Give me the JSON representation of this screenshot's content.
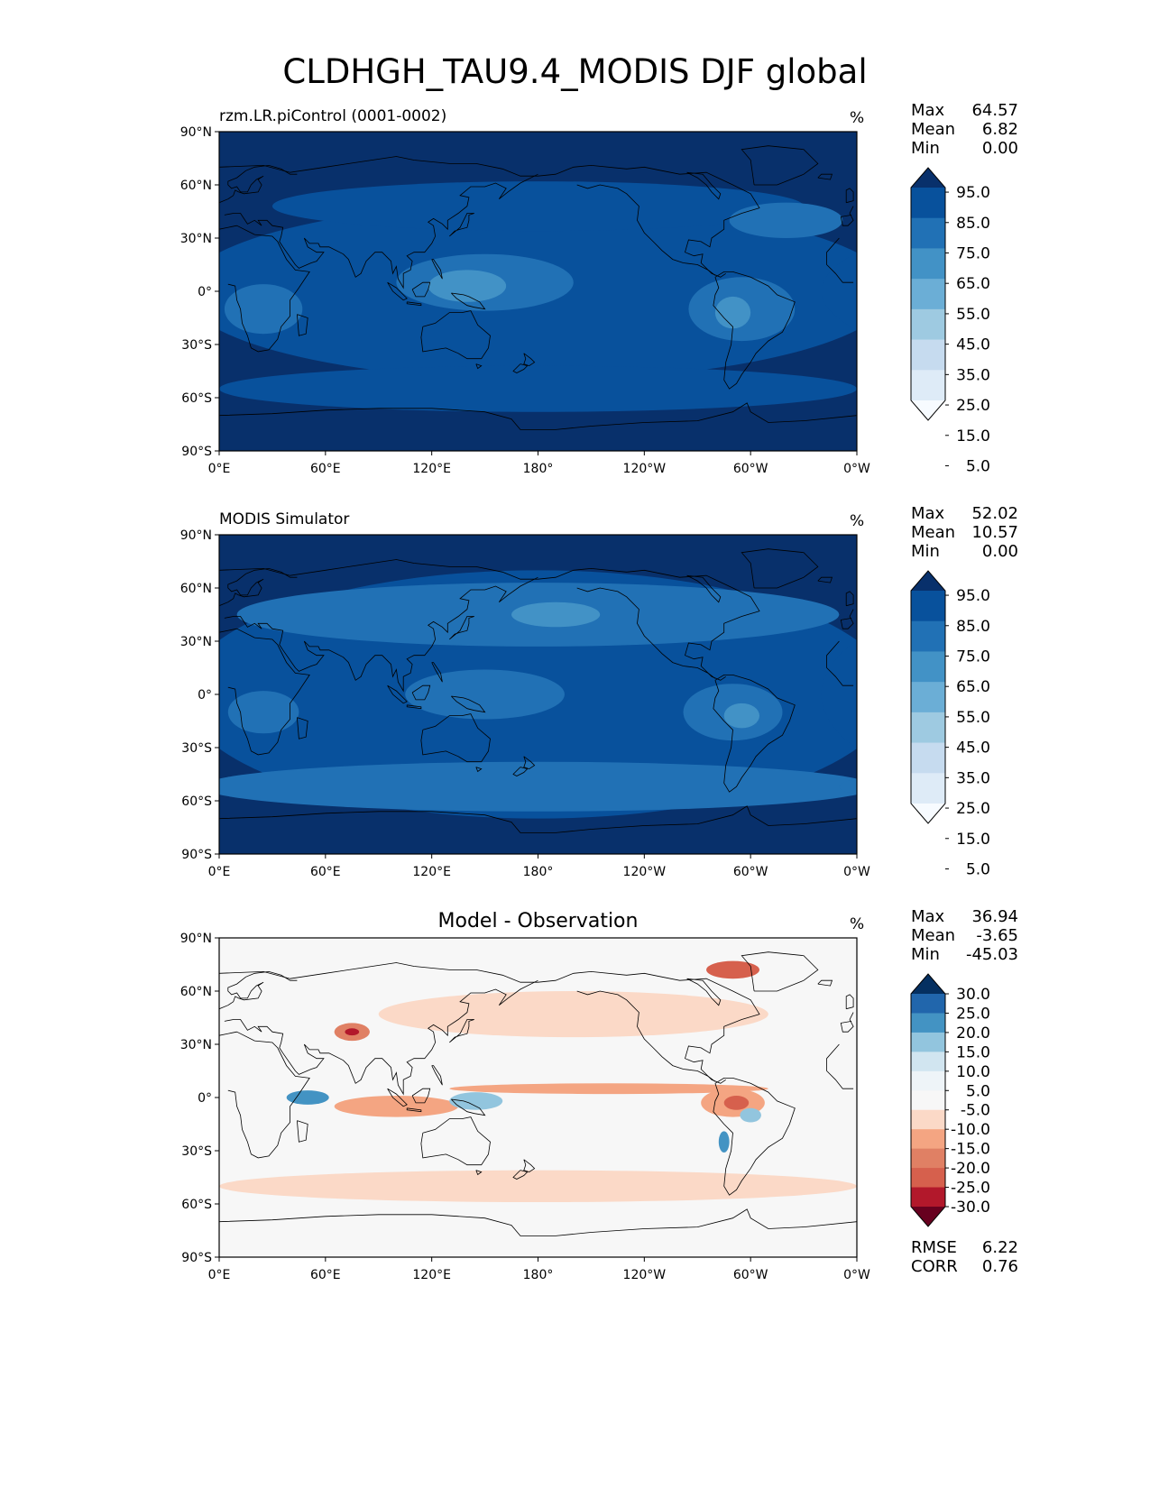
{
  "figure": {
    "title": "CLDHGH_TAU9.4_MODIS DJF global"
  },
  "axes": {
    "lat_ticks": [
      "90°N",
      "60°N",
      "30°N",
      "0°",
      "30°S",
      "60°S",
      "90°S"
    ],
    "lon_ticks": [
      "0°E",
      "60°E",
      "120°E",
      "180°",
      "120°W",
      "60°W",
      "0°W"
    ]
  },
  "chart_data": [
    {
      "type": "heatmap",
      "title": "rzm.LR.piControl (0001-0002)",
      "units": "%",
      "xlim": [
        0,
        360
      ],
      "ylim": [
        -90,
        90
      ],
      "stats": [
        {
          "label": "Max",
          "value": "64.57"
        },
        {
          "label": "Mean",
          "value": "6.82"
        },
        {
          "label": "Min",
          "value": "0.00"
        }
      ],
      "colorbar": {
        "levels": [
          "95.0",
          "85.0",
          "75.0",
          "65.0",
          "55.0",
          "45.0",
          "35.0",
          "25.0",
          "15.0",
          "5.0"
        ],
        "colors": [
          "#08306b",
          "#08519c",
          "#2171b5",
          "#4292c6",
          "#6baed6",
          "#9ecae1",
          "#c6dbef",
          "#deebf7",
          "#f7fbff"
        ]
      },
      "ellipses": [
        {
          "lon": 180,
          "lat": 0,
          "rlon": 200,
          "rlat": 50,
          "level": 1
        },
        {
          "lon": 150,
          "lat": 5,
          "rlon": 50,
          "rlat": 16,
          "level": 2
        },
        {
          "lon": 140,
          "lat": 3,
          "rlon": 22,
          "rlat": 9,
          "level": 3
        },
        {
          "lon": 295,
          "lat": -10,
          "rlon": 30,
          "rlat": 18,
          "level": 2
        },
        {
          "lon": 290,
          "lat": -12,
          "rlon": 10,
          "rlat": 9,
          "level": 3
        },
        {
          "lon": 25,
          "lat": -10,
          "rlon": 22,
          "rlat": 14,
          "level": 2
        },
        {
          "lon": 180,
          "lat": 48,
          "rlon": 150,
          "rlat": 14,
          "level": 1
        },
        {
          "lon": 180,
          "lat": -55,
          "rlon": 180,
          "rlat": 13,
          "level": 1
        },
        {
          "lon": 320,
          "lat": 40,
          "rlon": 32,
          "rlat": 10,
          "level": 2
        }
      ]
    },
    {
      "type": "heatmap",
      "title": "MODIS Simulator",
      "units": "%",
      "xlim": [
        0,
        360
      ],
      "ylim": [
        -90,
        90
      ],
      "stats": [
        {
          "label": "Max",
          "value": "52.02"
        },
        {
          "label": "Mean",
          "value": "10.57"
        },
        {
          "label": "Min",
          "value": "0.00"
        }
      ],
      "colorbar": {
        "levels": [
          "95.0",
          "85.0",
          "75.0",
          "65.0",
          "55.0",
          "45.0",
          "35.0",
          "25.0",
          "15.0",
          "5.0"
        ],
        "colors": [
          "#08306b",
          "#08519c",
          "#2171b5",
          "#4292c6",
          "#6baed6",
          "#9ecae1",
          "#c6dbef",
          "#deebf7",
          "#f7fbff"
        ]
      },
      "ellipses": [
        {
          "lon": 180,
          "lat": 0,
          "rlon": 200,
          "rlat": 70,
          "level": 1
        },
        {
          "lon": 180,
          "lat": 45,
          "rlon": 170,
          "rlat": 18,
          "level": 2
        },
        {
          "lon": 180,
          "lat": -52,
          "rlon": 190,
          "rlat": 14,
          "level": 2
        },
        {
          "lon": 150,
          "lat": 0,
          "rlon": 45,
          "rlat": 14,
          "level": 2
        },
        {
          "lon": 290,
          "lat": -10,
          "rlon": 28,
          "rlat": 16,
          "level": 2
        },
        {
          "lon": 295,
          "lat": -12,
          "rlon": 10,
          "rlat": 7,
          "level": 3
        },
        {
          "lon": 25,
          "lat": -10,
          "rlon": 20,
          "rlat": 12,
          "level": 2
        },
        {
          "lon": 190,
          "lat": 45,
          "rlon": 25,
          "rlat": 7,
          "level": 3
        }
      ]
    },
    {
      "type": "heatmap",
      "title": "Model - Observation",
      "units": "%",
      "xlim": [
        0,
        360
      ],
      "ylim": [
        -90,
        90
      ],
      "stats": [
        {
          "label": "Max",
          "value": "36.94"
        },
        {
          "label": "Mean",
          "value": "-3.65"
        },
        {
          "label": "Min",
          "value": "-45.03"
        }
      ],
      "metrics": [
        {
          "label": "RMSE",
          "value": "6.22"
        },
        {
          "label": "CORR",
          "value": "0.76"
        }
      ],
      "colorbar": {
        "levels": [
          "30.0",
          "25.0",
          "20.0",
          "15.0",
          "10.0",
          "5.0",
          "-5.0",
          "-10.0",
          "-15.0",
          "-20.0",
          "-25.0",
          "-30.0"
        ],
        "colors": [
          "#053061",
          "#2166ac",
          "#4393c3",
          "#92c5de",
          "#d1e5f0",
          "#eef4f8",
          "#f7f7f7",
          "#fbd9c7",
          "#f4a582",
          "#e08064",
          "#d6604d",
          "#b2182b",
          "#67001f"
        ]
      },
      "background_level": 6,
      "ellipses": [
        {
          "lon": 200,
          "lat": 47,
          "rlon": 110,
          "rlat": 13,
          "level": 7
        },
        {
          "lon": 180,
          "lat": -50,
          "rlon": 180,
          "rlat": 9,
          "level": 7
        },
        {
          "lon": 220,
          "lat": 5,
          "rlon": 90,
          "rlat": 3,
          "level": 8
        },
        {
          "lon": 290,
          "lat": -3,
          "rlon": 18,
          "rlat": 8,
          "level": 8
        },
        {
          "lon": 292,
          "lat": -3,
          "rlon": 7,
          "rlat": 4,
          "level": 10
        },
        {
          "lon": 75,
          "lat": 37,
          "rlon": 10,
          "rlat": 5,
          "level": 9
        },
        {
          "lon": 75,
          "lat": 37,
          "rlon": 4,
          "rlat": 2,
          "level": 11
        },
        {
          "lon": 100,
          "lat": -5,
          "rlon": 35,
          "rlat": 6,
          "level": 8
        },
        {
          "lon": 290,
          "lat": 72,
          "rlon": 15,
          "rlat": 5,
          "level": 10
        },
        {
          "lon": 50,
          "lat": 0,
          "rlon": 12,
          "rlat": 4,
          "level": 2
        },
        {
          "lon": 145,
          "lat": -2,
          "rlon": 15,
          "rlat": 5,
          "level": 3
        },
        {
          "lon": 300,
          "lat": -10,
          "rlon": 6,
          "rlat": 4,
          "level": 3
        },
        {
          "lon": 285,
          "lat": -25,
          "rlon": 3,
          "rlat": 6,
          "level": 2
        }
      ]
    }
  ]
}
